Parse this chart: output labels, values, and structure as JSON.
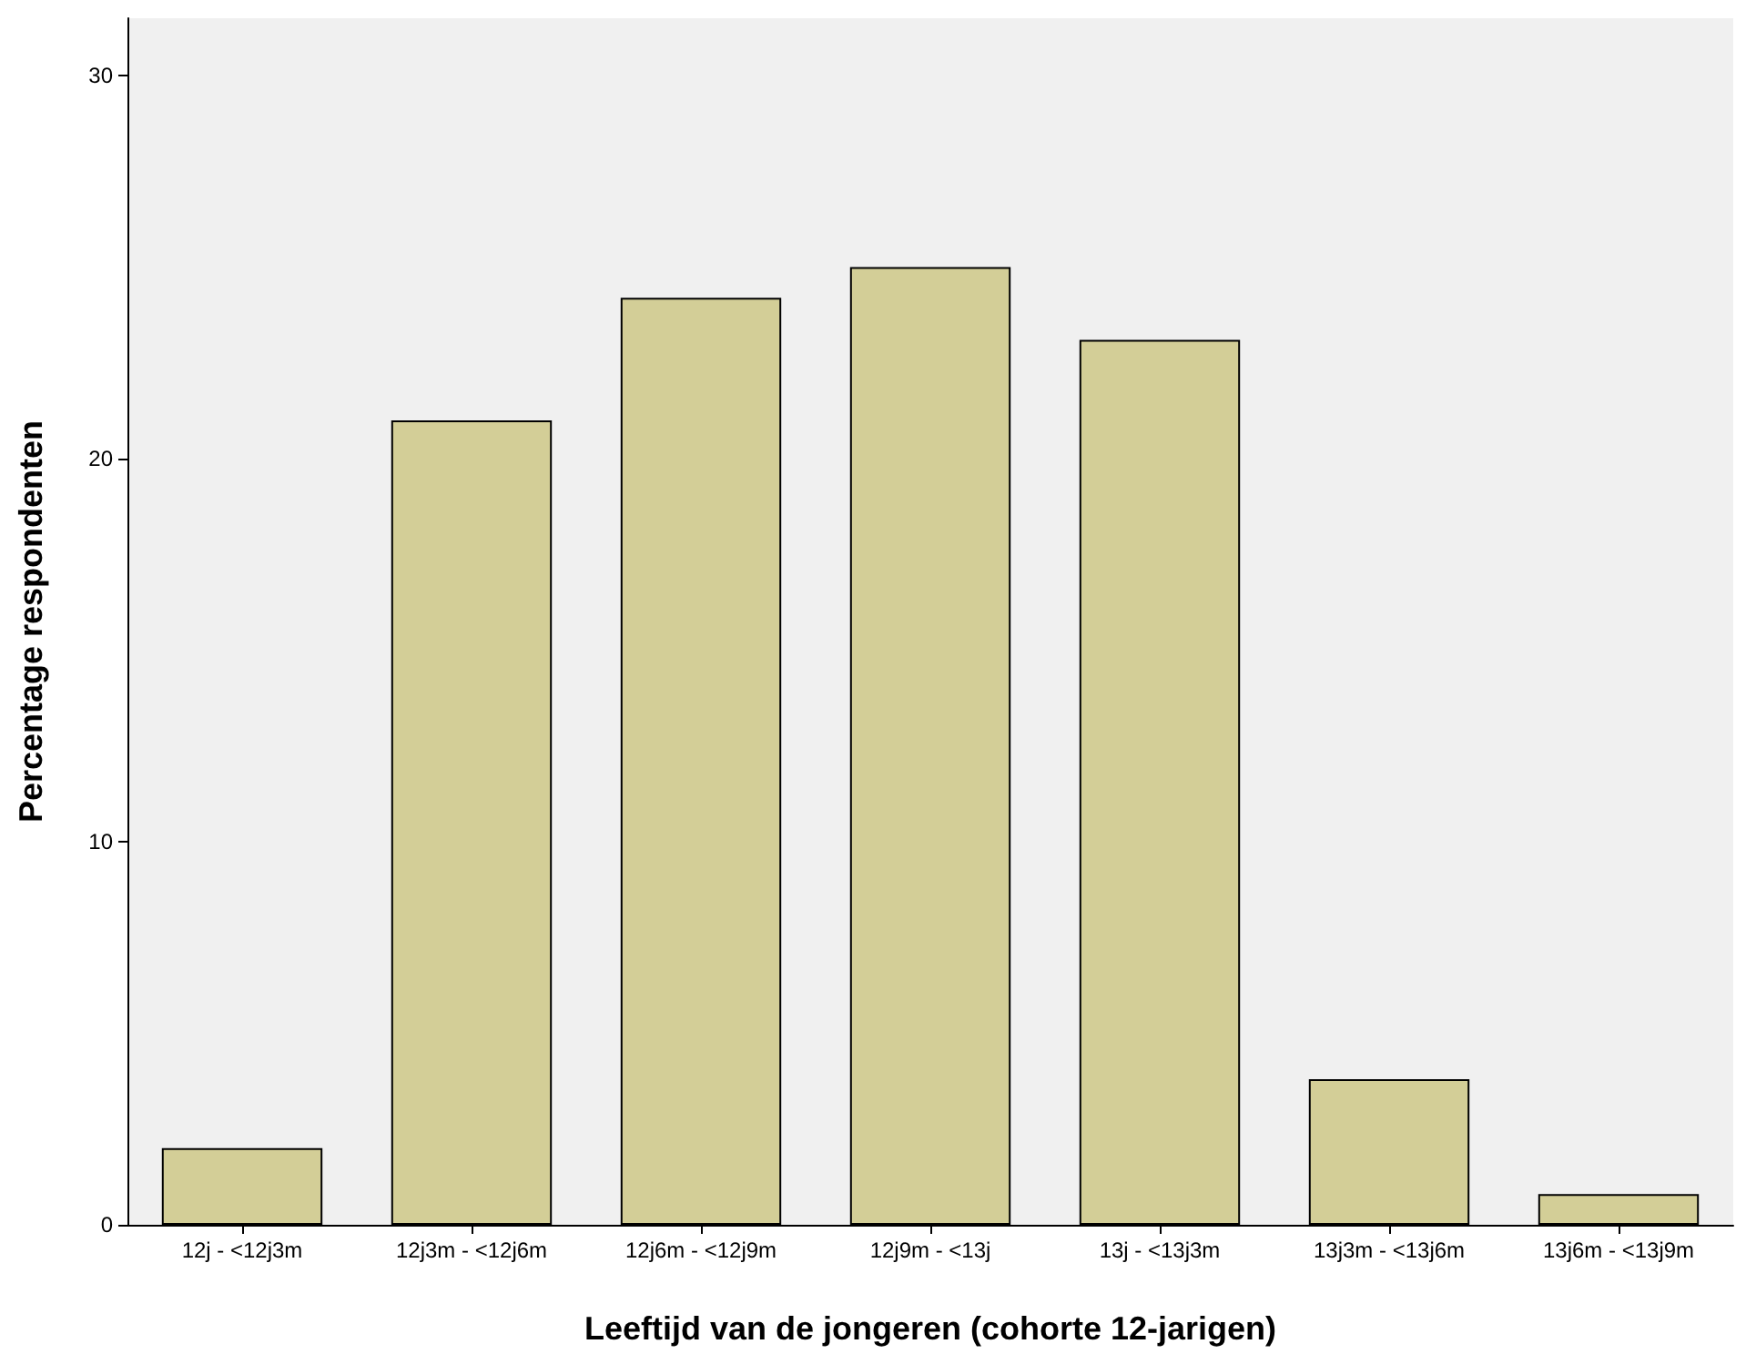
{
  "chart_data": {
    "type": "bar",
    "xlabel": "Leeftijd van de jongeren (cohorte 12-jarigen)",
    "ylabel": "Percentage respondenten",
    "categories": [
      "12j - <12j3m",
      "12j3m - <12j6m",
      "12j6m - <12j9m",
      "12j9m - <13j",
      "13j - <13j3m",
      "13j3m - <13j6m",
      "13j6m - <13j9m"
    ],
    "values": [
      2.0,
      21.0,
      24.2,
      25.0,
      23.1,
      3.8,
      0.8
    ],
    "color": "#d3ce97",
    "ylim": [
      0,
      31.5
    ],
    "yticks": [
      0,
      10,
      20,
      30
    ]
  }
}
